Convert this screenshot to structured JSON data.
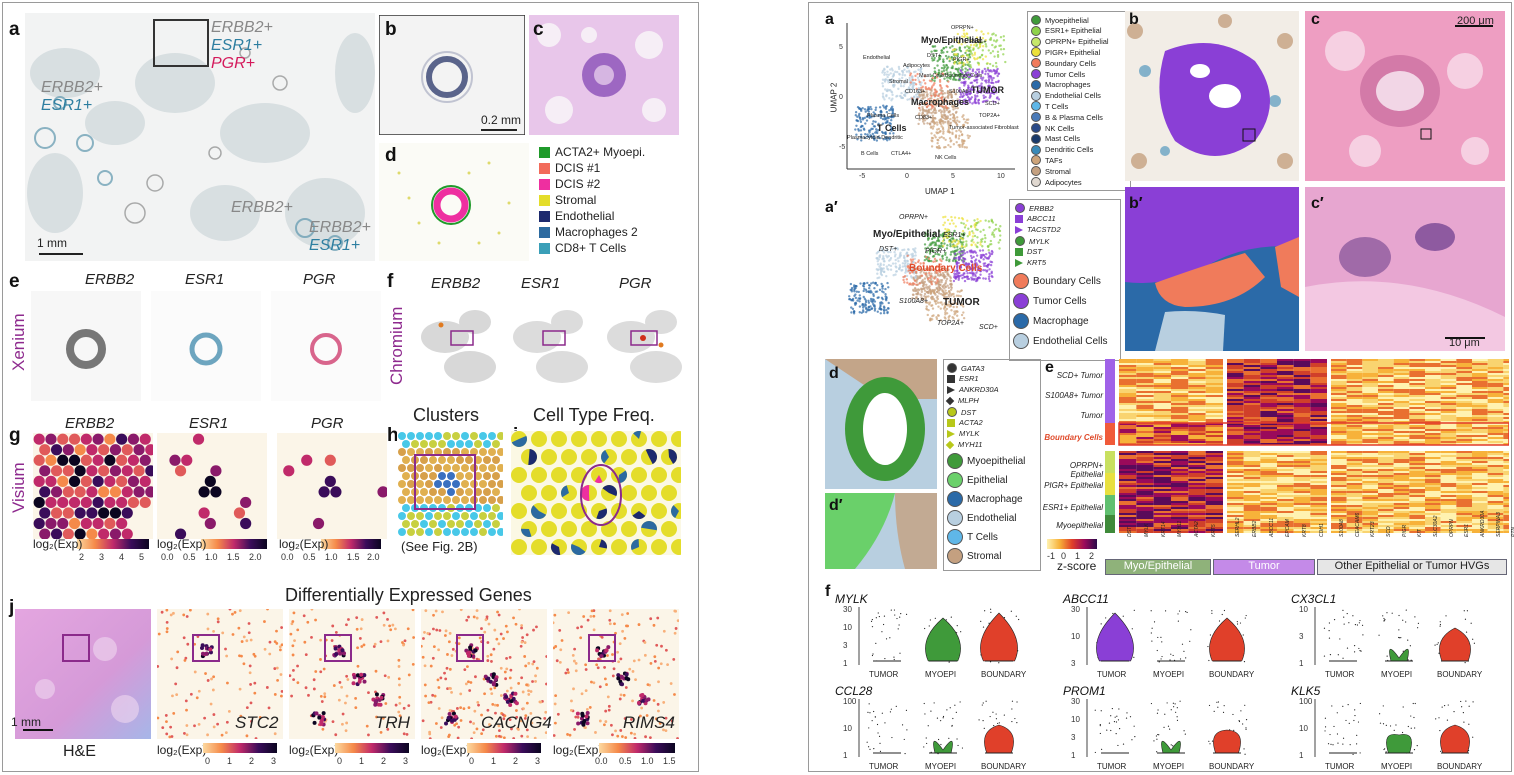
{
  "left": {
    "panel_labels": {
      "a": "a",
      "b": "b",
      "c": "c",
      "d": "d",
      "e": "e",
      "f": "f",
      "g": "g",
      "h": "h",
      "i": "i",
      "j": "j"
    },
    "a_annotations": [
      {
        "g1": "ERBB2+",
        "g2": "ESR1+",
        "g3": "PGR+"
      },
      {
        "g1": "ERBB2+",
        "g2": "ESR1+"
      },
      {
        "g1": "ERBB2+"
      },
      {
        "g1": "ERBB2+",
        "g2": "ESR1+"
      }
    ],
    "a_scalebar": "1 mm",
    "b_scalebar": "0.2 mm",
    "d_legend": [
      "ACTA2+ Myoepi.",
      "DCIS #1",
      "DCIS #2",
      "Stromal",
      "Endothelial",
      "Macrophages 2",
      "CD8+ T Cells"
    ],
    "d_legend_colors": [
      "#1f9a2a",
      "#f26b5b",
      "#ee2fa0",
      "#e4dd2a",
      "#1d2a6e",
      "#2c6aa0",
      "#3a9fb8"
    ],
    "row_labels": {
      "xenium": "Xenium",
      "chromium": "Chromium",
      "visium": "Visium"
    },
    "genes": [
      "ERBB2",
      "ESR1",
      "PGR"
    ],
    "g_colorbars": [
      {
        "label": "log₂(Exp)",
        "ticks": [
          "2",
          "3",
          "4",
          "5"
        ]
      },
      {
        "label": "log₂(Exp)",
        "ticks": [
          "0.0",
          "0.5",
          "1.0",
          "1.5",
          "2.0"
        ]
      },
      {
        "label": "log₂(Exp)",
        "ticks": [
          "0.0",
          "0.5",
          "1.0",
          "1.5",
          "2.0"
        ]
      }
    ],
    "h_title": "Clusters",
    "h_caption": "(See Fig. 2B)",
    "i_title": "Cell Type Freq.",
    "j_title": "Differentially Expressed Genes",
    "j_he_label": "H&E",
    "j_he_scalebar": "1 mm",
    "j_genes": [
      "STC2",
      "TRH",
      "CACNG4",
      "RIMS4"
    ],
    "j_colorbars": [
      {
        "label": "log₂(Exp)",
        "ticks": [
          "0",
          "1",
          "2",
          "3"
        ]
      },
      {
        "label": "log₂(Exp)",
        "ticks": [
          "0",
          "1",
          "2",
          "3"
        ]
      },
      {
        "label": "log₂(Exp)",
        "ticks": [
          "0",
          "1",
          "2",
          "3"
        ]
      },
      {
        "label": "log₂(Exp)",
        "ticks": [
          "0.0",
          "0.5",
          "1.0",
          "1.5"
        ]
      }
    ]
  },
  "right": {
    "panel_labels": {
      "a": "a",
      "b": "b",
      "c": "c",
      "a2": "a′",
      "b2": "b′",
      "c2": "c′",
      "d": "d",
      "d2": "d′",
      "e": "e",
      "f": "f"
    },
    "umap_axis": {
      "x": "UMAP 1",
      "y": "UMAP 2",
      "xticks": [
        "-5",
        "0",
        "5",
        "10"
      ],
      "yticks": [
        "5",
        "0",
        "-5"
      ]
    },
    "umap_labels": [
      "OPRPN+",
      "Myo/Epithelial",
      "ESR1+",
      "DST+",
      "PIGR+",
      "Endothelial",
      "Adipocytes",
      "Mast Cells",
      "Boundary Cells",
      "Stromal",
      "CD163+",
      "S100A8+",
      "TUMOR",
      "Macrophages",
      "SCD+",
      "TOP2A+",
      "Plasma Cells",
      "CD83+",
      "T Cells",
      "Plasmacytoid Dendritic",
      "Tumor-associated Fibroblasts",
      "B Cells",
      "CTLA4+",
      "NK Cells"
    ],
    "a_legend": [
      {
        "label": "Myoepithelial",
        "color": "#3f9a3a"
      },
      {
        "label": "ESR1+ Epithelial",
        "color": "#8ed24a"
      },
      {
        "label": "OPRPN+ Epithelial",
        "color": "#c7e86a"
      },
      {
        "label": "PIGR+ Epithelial",
        "color": "#ece13a"
      },
      {
        "label": "Boundary Cells",
        "color": "#f07b5b"
      },
      {
        "label": "Tumor Cells",
        "color": "#8a3fd6"
      },
      {
        "label": "Macrophages",
        "color": "#2b6aa8"
      },
      {
        "label": "Endothelial Cells",
        "color": "#b8cfe0"
      },
      {
        "label": "T Cells",
        "color": "#5fb7e8"
      },
      {
        "label": "B & Plasma Cells",
        "color": "#4a7ab8"
      },
      {
        "label": "NK Cells",
        "color": "#2a4a88"
      },
      {
        "label": "Mast Cells",
        "color": "#1a3a6a"
      },
      {
        "label": "Dendritic Cells",
        "color": "#3a8ab8"
      },
      {
        "label": "TAFs",
        "color": "#cda47a"
      },
      {
        "label": "Stromal",
        "color": "#c4a080"
      },
      {
        "label": "Adipocytes",
        "color": "#e0d8d0"
      }
    ],
    "a2_labels": [
      "OPRPN+",
      "Myo/Epithelial",
      "DST+",
      "ESR1+",
      "PIGR+",
      "Boundary Cells",
      "S100A8+",
      "TUMOR",
      "TOP2A+",
      "SCD+"
    ],
    "a2_legend_markers": [
      {
        "label": "ERBB2",
        "shape": "circle",
        "color": "#8a3fd6"
      },
      {
        "label": "ABCC11",
        "shape": "square",
        "color": "#8a3fd6"
      },
      {
        "label": "TACSTD2",
        "shape": "triangle",
        "color": "#8a3fd6"
      },
      {
        "label": "MYLK",
        "shape": "circle",
        "color": "#3f9a3a"
      },
      {
        "label": "DST",
        "shape": "square",
        "color": "#3f9a3a"
      },
      {
        "label": "KRT5",
        "shape": "triangle",
        "color": "#3f9a3a"
      }
    ],
    "a2_legend_cells": [
      {
        "label": "Boundary Cells",
        "color": "#f07b5b"
      },
      {
        "label": "Tumor Cells",
        "color": "#8a3fd6"
      },
      {
        "label": "Macrophage",
        "color": "#2b6aa8"
      },
      {
        "label": "Endothelial Cells",
        "color": "#b8cfe0"
      }
    ],
    "c_scalebar": "200 μm",
    "c2_scalebar": "10 μm",
    "d_legend_markers": [
      {
        "label": "GATA3",
        "shape": "circle",
        "color": "#333333"
      },
      {
        "label": "ESR1",
        "shape": "square",
        "color": "#333333"
      },
      {
        "label": "ANKRD30A",
        "shape": "triangle",
        "color": "#333333"
      },
      {
        "label": "MLPH",
        "shape": "diamond",
        "color": "#333333"
      },
      {
        "label": "DST",
        "shape": "circle",
        "color": "#b8c81a"
      },
      {
        "label": "ACTA2",
        "shape": "square",
        "color": "#b8c81a"
      },
      {
        "label": "MYLK",
        "shape": "triangle",
        "color": "#b8c81a"
      },
      {
        "label": "MYH11",
        "shape": "diamond",
        "color": "#b8c81a"
      }
    ],
    "d_legend_cells": [
      {
        "label": "Myoepithelial",
        "color": "#3f9a3a"
      },
      {
        "label": "Epithelial",
        "color": "#6ad06a"
      },
      {
        "label": "Macrophage",
        "color": "#2b6aa8"
      },
      {
        "label": "Endothelial",
        "color": "#b8cfe0"
      },
      {
        "label": "T Cells",
        "color": "#5fb7e8"
      },
      {
        "label": "Stromal",
        "color": "#c4a080"
      }
    ],
    "heatmap_rows": [
      "SCD+ Tumor",
      "S100A8+ Tumor",
      "Tumor",
      "Boundary Cells",
      "OPRPN+ Epithelial",
      "PIGR+ Epithelial",
      "ESR1+ Epithelial",
      "Myoepithelial"
    ],
    "heatmap_cols_1": [
      "DST",
      "MYLK",
      "KRT14",
      "MYH11",
      "ACTA2",
      "KRT5"
    ],
    "heatmap_cols_2": [
      "SERHL2",
      "ERBB2",
      "ABCC11",
      "EPCAM",
      "KRT8",
      "CDH1"
    ],
    "heatmap_cols_3": [
      "S100A8",
      "CEACAM6",
      "KRT23",
      "SCD",
      "PIGR",
      "KIT",
      "SLC30A2",
      "OPRPN",
      "ESR1",
      "ANKRD30A",
      "SERPINA3",
      "PTN"
    ],
    "heatmap_colorbar": {
      "label": "z-score",
      "ticks": [
        "-1",
        "0",
        "1",
        "2"
      ]
    },
    "heatmap_groups": [
      "Myo/Epithelial",
      "Tumor",
      "Other Epithelial or Tumor HVGs"
    ],
    "violin_genes": [
      "MYLK",
      "ABCC11",
      "CX3CL1",
      "CCL28",
      "PROM1",
      "KLK5"
    ],
    "violin_groups": [
      "TUMOR",
      "MYOEPI",
      "BOUNDARY"
    ],
    "violin_yticks": [
      [
        "1",
        "3",
        "10",
        "30"
      ],
      [
        "3",
        "10",
        "30"
      ],
      [
        "1",
        "3",
        "10"
      ],
      [
        "1",
        "10",
        "100"
      ],
      [
        "1",
        "3",
        "10",
        "30"
      ],
      [
        "1",
        "10",
        "100"
      ]
    ]
  }
}
